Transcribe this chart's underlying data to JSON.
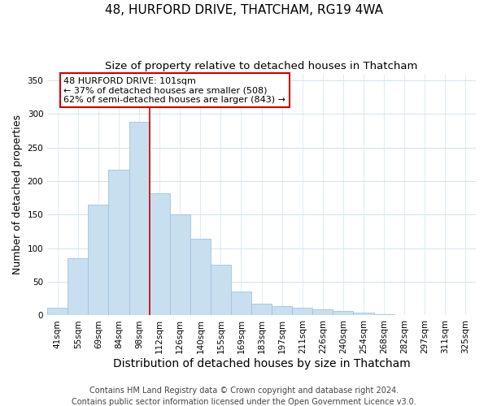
{
  "title": "48, HURFORD DRIVE, THATCHAM, RG19 4WA",
  "subtitle": "Size of property relative to detached houses in Thatcham",
  "xlabel": "Distribution of detached houses by size in Thatcham",
  "ylabel": "Number of detached properties",
  "bar_labels": [
    "41sqm",
    "55sqm",
    "69sqm",
    "84sqm",
    "98sqm",
    "112sqm",
    "126sqm",
    "140sqm",
    "155sqm",
    "169sqm",
    "183sqm",
    "197sqm",
    "211sqm",
    "226sqm",
    "240sqm",
    "254sqm",
    "268sqm",
    "282sqm",
    "297sqm",
    "311sqm",
    "325sqm"
  ],
  "bar_values": [
    12,
    85,
    165,
    217,
    288,
    182,
    150,
    114,
    76,
    35,
    18,
    14,
    12,
    9,
    6,
    4,
    2,
    1,
    1,
    1,
    1
  ],
  "bar_color": "#c8dff0",
  "bar_edge_color": "#a0c4de",
  "vline_x_index": 4,
  "vline_color": "#cc0000",
  "annotation_text": "48 HURFORD DRIVE: 101sqm\n← 37% of detached houses are smaller (508)\n62% of semi-detached houses are larger (843) →",
  "annotation_box_color": "white",
  "annotation_box_edge": "#cc0000",
  "ylim": [
    0,
    360
  ],
  "yticks": [
    0,
    50,
    100,
    150,
    200,
    250,
    300,
    350
  ],
  "footer": "Contains HM Land Registry data © Crown copyright and database right 2024.\nContains public sector information licensed under the Open Government Licence v3.0.",
  "title_fontsize": 11,
  "subtitle_fontsize": 9.5,
  "xlabel_fontsize": 10,
  "ylabel_fontsize": 9,
  "tick_fontsize": 7.5,
  "annotation_fontsize": 8,
  "footer_fontsize": 7
}
